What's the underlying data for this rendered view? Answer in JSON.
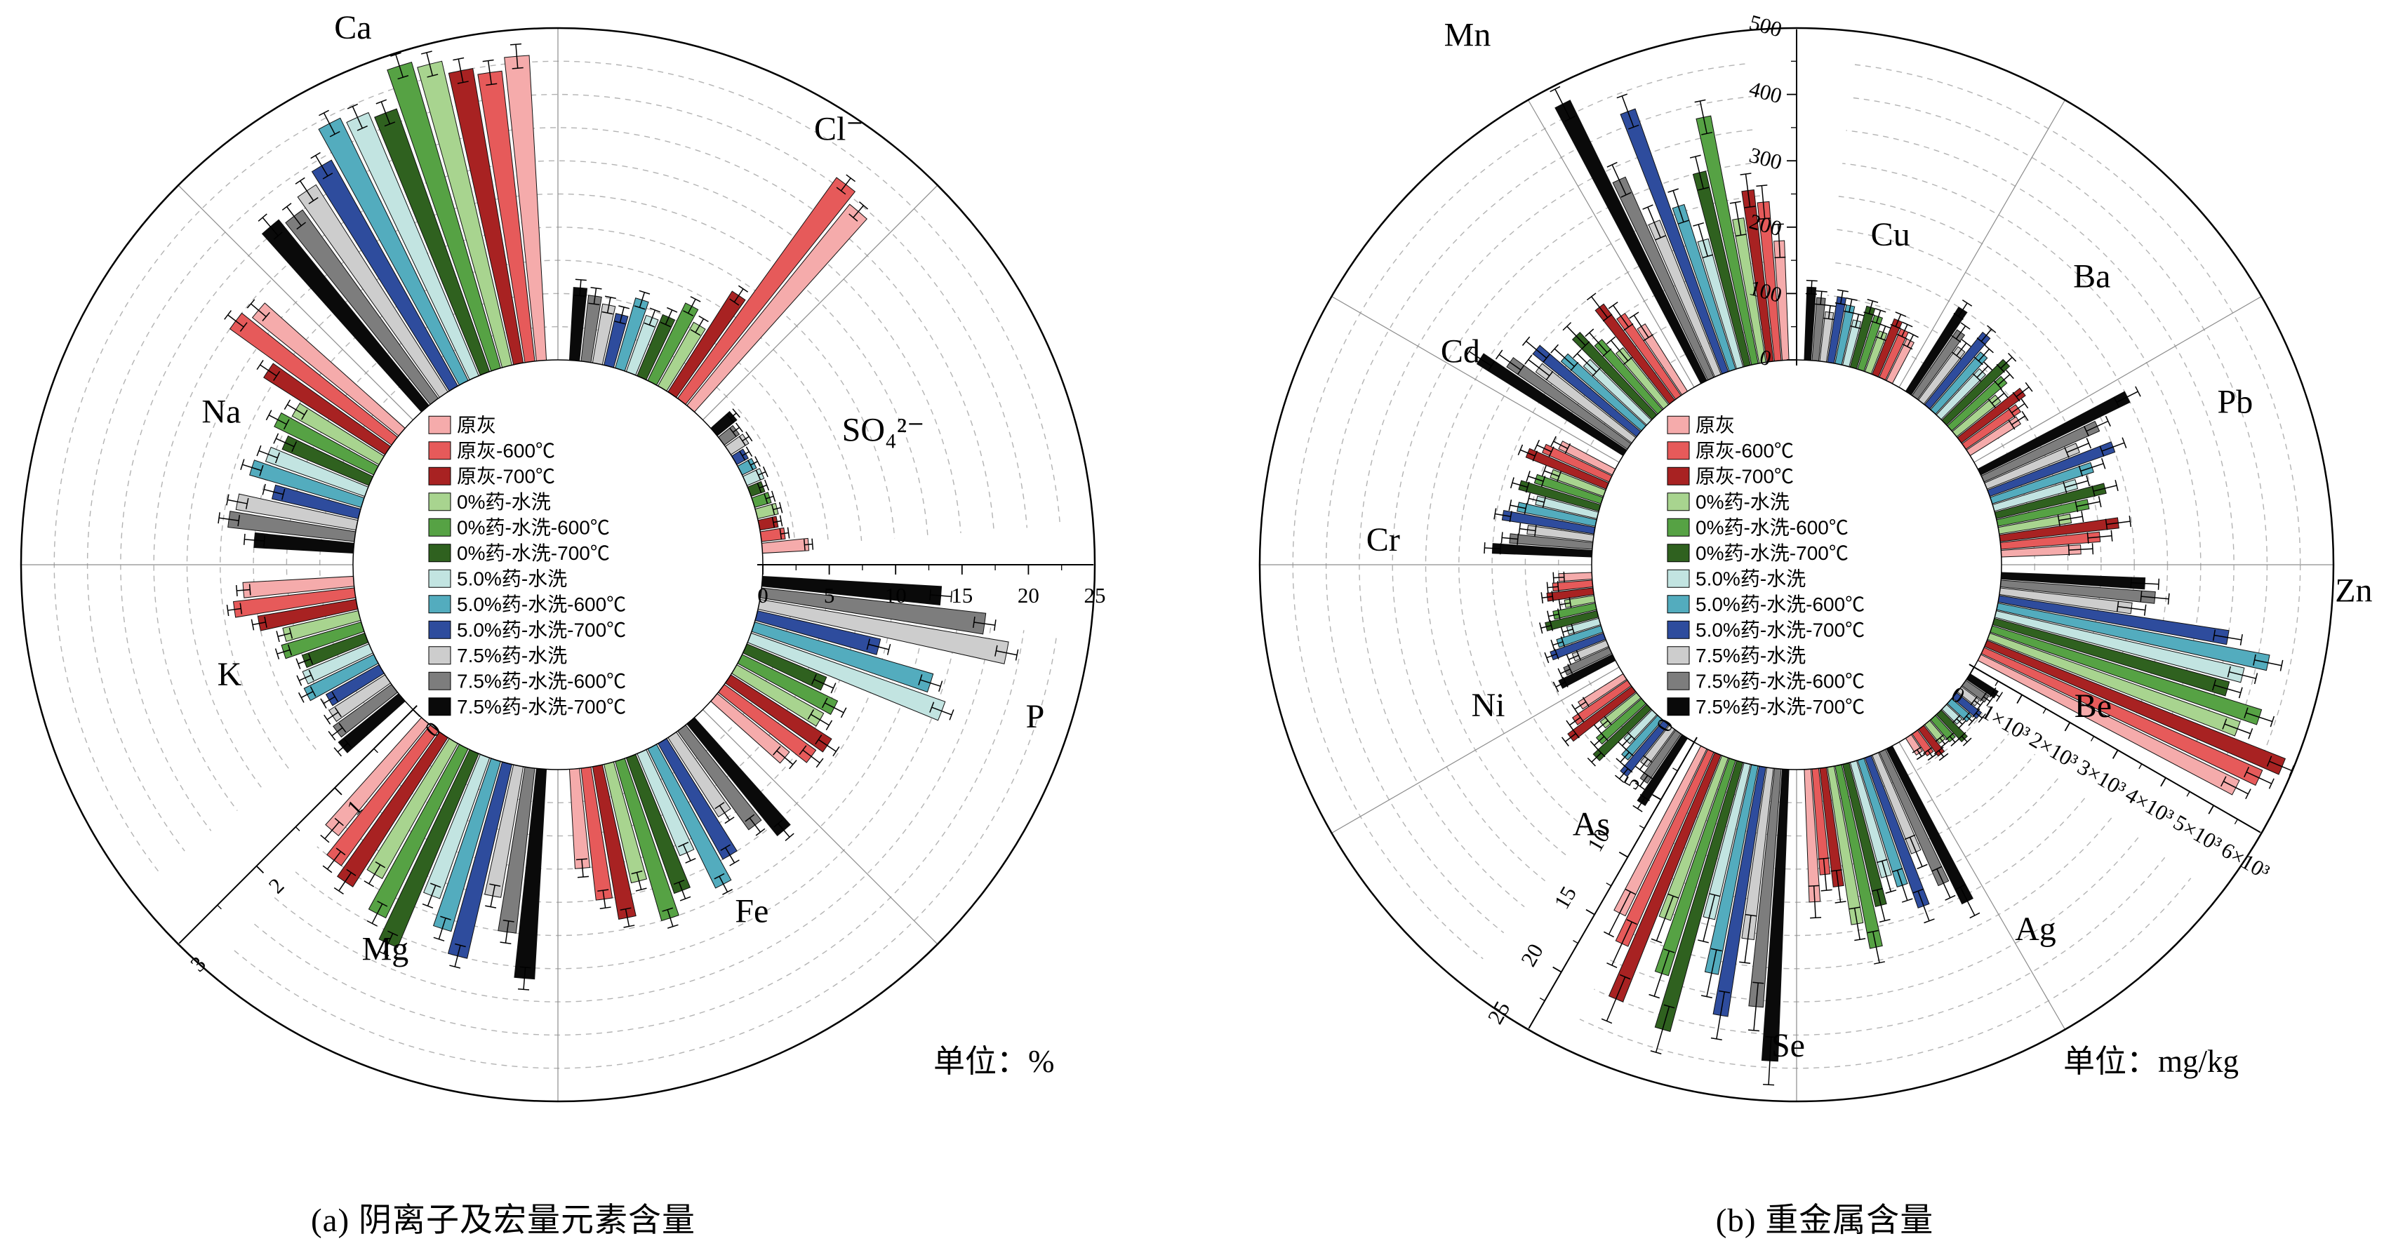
{
  "page": {
    "background": "#ffffff"
  },
  "legend": {
    "entries": [
      {
        "label": "原灰",
        "color": "#F5ABAB"
      },
      {
        "label": "原灰-600℃",
        "color": "#E65A5A"
      },
      {
        "label": "原灰-700℃",
        "color": "#A82222"
      },
      {
        "label": "0%药-水洗",
        "color": "#A8D48F"
      },
      {
        "label": "0%药-水洗-600℃",
        "color": "#56A244"
      },
      {
        "label": "0%药-水洗-700℃",
        "color": "#2F611F"
      },
      {
        "label": "5.0%药-水洗",
        "color": "#C2E4E1"
      },
      {
        "label": "5.0%药-水洗-600℃",
        "color": "#53ACBE"
      },
      {
        "label": "5.0%药-水洗-700℃",
        "color": "#2E4C9D"
      },
      {
        "label": "7.5%药-水洗",
        "color": "#CDCDCD"
      },
      {
        "label": "7.5%药-水洗-600℃",
        "color": "#7D7D7D"
      },
      {
        "label": "7.5%药-水洗-700℃",
        "color": "#0A0A0A"
      }
    ]
  },
  "chart_data": [
    {
      "id": "a",
      "type": "polar_bar",
      "title": "(a) 阴离子及宏量元素含量",
      "unit": "单位：%",
      "legend_position": "center",
      "grid": true,
      "series": [
        "原灰",
        "原灰-600℃",
        "原灰-700℃",
        "0%药-水洗",
        "0%药-水洗-600℃",
        "0%药-水洗-700℃",
        "5.0%药-水洗",
        "5.0%药-水洗-600℃",
        "5.0%药-水洗-700℃",
        "7.5%药-水洗",
        "7.5%药-水洗-600℃",
        "7.5%药-水洗-700℃"
      ],
      "axes": [
        {
          "id": "pct25",
          "max": 25,
          "angle": 90,
          "ticks": [
            0,
            5,
            10,
            15,
            20,
            25
          ],
          "tick_labels": [
            "0",
            "5",
            "10",
            "15",
            "20",
            "25"
          ],
          "minor_step": 2.5
        },
        {
          "id": "pct3",
          "max": 3,
          "angle": 225,
          "ticks": [
            0,
            1,
            2,
            3
          ],
          "tick_labels": [
            "0",
            "1",
            "2",
            "3"
          ],
          "minor_step": 0.5
        }
      ],
      "sectors": [
        {
          "label": "Cl⁻",
          "axis": "pct25",
          "err": 0.6,
          "values": [
            19.5,
            20.5,
            9,
            5.5,
            6.5,
            5,
            4.5,
            5.5,
            4,
            4.5,
            5,
            5.5
          ]
        },
        {
          "label": "SO₄²⁻",
          "axis": "pct25",
          "err": 0.3,
          "values": [
            3.5,
            1.8,
            1.4,
            1.6,
            1.3,
            1.1,
            1.4,
            1.2,
            1,
            1.6,
            1.4,
            1.9
          ]
        },
        {
          "label": "P",
          "axis": "pct25",
          "err": 0.8,
          "values": [
            7,
            8.5,
            9,
            7.5,
            8,
            6.5,
            15.5,
            14,
            9.5,
            19,
            17,
            13.5
          ]
        },
        {
          "label": "Fe",
          "axis": "pct3",
          "err": 0.08,
          "values": [
            0.9,
            1.2,
            1.4,
            1.1,
            1.5,
            1.3,
            1,
            1.4,
            1.2,
            0.85,
            1.1,
            1.3
          ]
        },
        {
          "label": "Mg",
          "axis": "pct3",
          "err": 0.1,
          "values": [
            1.3,
            1.5,
            1.6,
            1.4,
            1.7,
            1.9,
            1.35,
            1.6,
            1.8,
            1.2,
            1.5,
            1.9
          ]
        },
        {
          "label": "K",
          "axis": "pct3",
          "err": 0.06,
          "values": [
            1,
            1.1,
            0.9,
            0.7,
            0.75,
            0.6,
            0.65,
            0.7,
            0.55,
            0.6,
            0.65,
            0.7
          ]
        },
        {
          "label": "Na",
          "axis": "pct3",
          "err": 0.09,
          "values": [
            1.7,
            1.8,
            1.3,
            0.9,
            1,
            0.85,
            0.95,
            1.05,
            0.8,
            1.1,
            1.15,
            0.9
          ]
        },
        {
          "label": "Ca",
          "axis": "pct25",
          "err": 0.9,
          "values": [
            23,
            22,
            22.5,
            23.5,
            24,
            21,
            21.5,
            22,
            19.5,
            18.5,
            17.5,
            18
          ]
        }
      ]
    },
    {
      "id": "b",
      "type": "polar_bar",
      "title": "(b) 重金属含量",
      "unit": "单位：mg/kg",
      "legend_position": "center",
      "grid": true,
      "series": [
        "原灰",
        "原灰-600℃",
        "原灰-700℃",
        "0%药-水洗",
        "0%药-水洗-600℃",
        "0%药-水洗-700℃",
        "5.0%药-水洗",
        "5.0%药-水洗-600℃",
        "5.0%药-水洗-700℃",
        "7.5%药-水洗",
        "7.5%药-水洗-600℃",
        "7.5%药-水洗-700℃"
      ],
      "axes": [
        {
          "id": "mg500",
          "max": 500,
          "angle": 0,
          "ticks": [
            0,
            100,
            200,
            300,
            400,
            500
          ],
          "tick_labels": [
            "0",
            "100",
            "200",
            "300",
            "400",
            "500"
          ],
          "minor_step": 50
        },
        {
          "id": "zn6k",
          "max": 6000,
          "angle": 120,
          "ticks": [
            0,
            1000,
            2000,
            3000,
            4000,
            5000,
            6000
          ],
          "tick_labels": [
            "0",
            "1×10³",
            "2×10³",
            "3×10³",
            "4×10³",
            "5×10³",
            "6×10³"
          ],
          "minor_step": 500
        },
        {
          "id": "mg25",
          "max": 25,
          "angle": 210,
          "ticks": [
            0,
            5,
            10,
            15,
            20,
            25
          ],
          "tick_labels": [
            "0",
            "5",
            "10",
            "15",
            "20",
            "25"
          ],
          "minor_step": 2.5
        }
      ],
      "sectors": [
        {
          "label": "Cu",
          "axis": "mg500",
          "err": 10,
          "values": [
            70,
            80,
            90,
            65,
            85,
            95,
            70,
            90,
            100,
            75,
            95,
            110
          ]
        },
        {
          "label": "Ba",
          "axis": "mg500",
          "err": 12,
          "values": [
            90,
            100,
            120,
            85,
            110,
            130,
            95,
            115,
            140,
            100,
            120,
            150
          ]
        },
        {
          "label": "Pb",
          "axis": "mg500",
          "err": 18,
          "values": [
            120,
            150,
            180,
            110,
            140,
            170,
            130,
            160,
            200,
            150,
            190,
            250
          ]
        },
        {
          "label": "Zn",
          "axis": "zn6k",
          "err": 250,
          "values": [
            5200,
            5500,
            5800,
            4800,
            5100,
            4400,
            4600,
            5000,
            4200,
            2400,
            2800,
            2600
          ]
        },
        {
          "label": "Be",
          "axis": "mg25",
          "err": 0.3,
          "values": [
            1.5,
            2,
            2.5,
            1.8,
            2.2,
            2.8,
            1.6,
            2,
            2.4,
            1.7,
            2.1,
            2.5
          ]
        },
        {
          "label": "Ag",
          "axis": "mg25",
          "err": 1.2,
          "values": [
            10,
            8,
            9,
            12,
            14,
            11,
            9,
            10,
            12,
            8,
            11,
            13
          ]
        },
        {
          "label": "Se",
          "axis": "mg25",
          "err": 1.8,
          "values": [
            14,
            16,
            20,
            13,
            17,
            21,
            12,
            16,
            19,
            13,
            18,
            22
          ]
        },
        {
          "label": "As",
          "axis": "mg25",
          "err": 0.5,
          "values": [
            4,
            5,
            6,
            3.5,
            4.5,
            5.5,
            3,
            4,
            5,
            3.5,
            4.5,
            6
          ]
        },
        {
          "label": "Ni",
          "axis": "mg500",
          "err": 8,
          "values": [
            50,
            60,
            70,
            45,
            65,
            80,
            50,
            70,
            85,
            55,
            75,
            90
          ]
        },
        {
          "label": "Cr",
          "axis": "mg500",
          "err": 12,
          "values": [
            90,
            110,
            130,
            85,
            105,
            125,
            95,
            120,
            140,
            100,
            125,
            150
          ]
        },
        {
          "label": "Cd",
          "axis": "mg500",
          "err": 20,
          "values": [
            120,
            150,
            180,
            110,
            140,
            170,
            130,
            160,
            200,
            180,
            220,
            260
          ]
        },
        {
          "label": "Mn",
          "axis": "mg500",
          "err": 25,
          "values": [
            180,
            240,
            260,
            220,
            380,
            300,
            200,
            260,
            420,
            250,
            330,
            470
          ]
        }
      ]
    }
  ]
}
